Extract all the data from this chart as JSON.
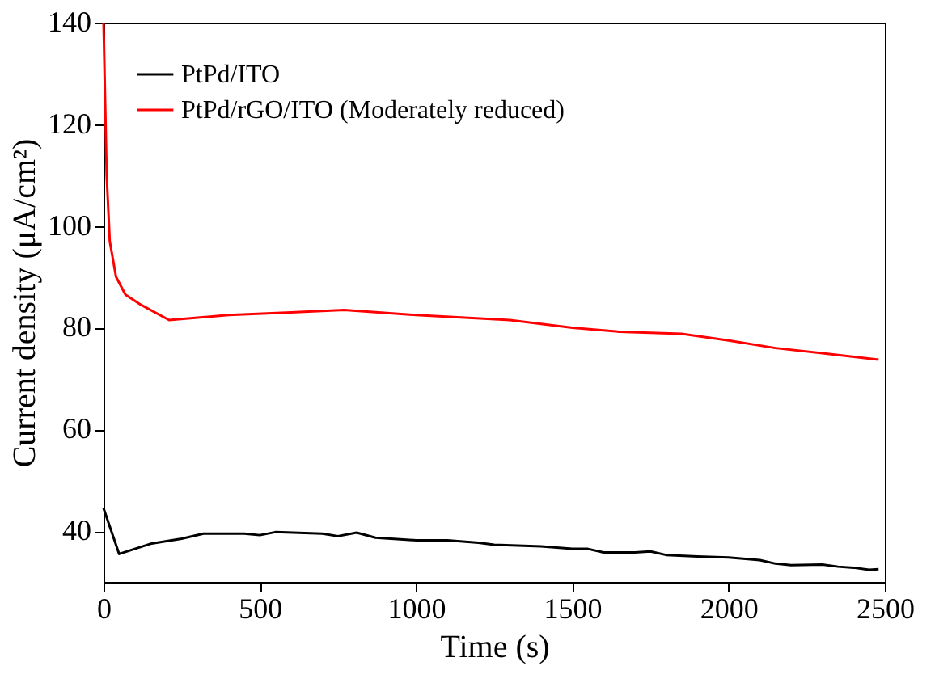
{
  "chart_data": {
    "type": "line",
    "xlabel": "Time (s)",
    "ylabel": "Current density (μA/cm²)",
    "xlim": [
      0,
      2500
    ],
    "xticks": [
      0,
      500,
      1000,
      1500,
      2000,
      2500
    ],
    "ylim": [
      30,
      140
    ],
    "yticks": [
      40,
      60,
      80,
      100,
      120,
      140
    ],
    "grid": false,
    "legend": "top left",
    "line_style": "solid",
    "marker": "none",
    "series": [
      {
        "name": "PtPd/ITO",
        "color": "#000000",
        "x": [
          0,
          50,
          150,
          250,
          320,
          450,
          500,
          550,
          700,
          750,
          810,
          870,
          1000,
          1100,
          1200,
          1250,
          1400,
          1500,
          1550,
          1600,
          1700,
          1750,
          1800,
          1900,
          2000,
          2100,
          2150,
          2200,
          2300,
          2350,
          2400,
          2450,
          2480
        ],
        "values": [
          44.5,
          35.5,
          37.5,
          38.5,
          39.5,
          39.5,
          39.2,
          39.8,
          39.5,
          39,
          39.7,
          38.7,
          38.2,
          38.2,
          37.7,
          37.3,
          37,
          36.5,
          36.5,
          35.8,
          35.8,
          36,
          35.3,
          35,
          34.8,
          34.3,
          33.6,
          33.3,
          33.4,
          33,
          32.8,
          32.4,
          32.5
        ]
      },
      {
        "name": "PtPd/rGO/ITO (Moderately reduced)",
        "color": "#ff0000",
        "x": [
          0,
          10,
          20,
          40,
          70,
          120,
          210,
          400,
          600,
          770,
          1000,
          1300,
          1500,
          1650,
          1850,
          2000,
          2150,
          2300,
          2480
        ],
        "values": [
          140,
          110,
          97,
          90,
          86.5,
          84.5,
          81.5,
          82.5,
          83,
          83.5,
          82.5,
          81.5,
          80,
          79.2,
          78.8,
          77.5,
          76,
          75,
          73.7
        ]
      }
    ]
  }
}
